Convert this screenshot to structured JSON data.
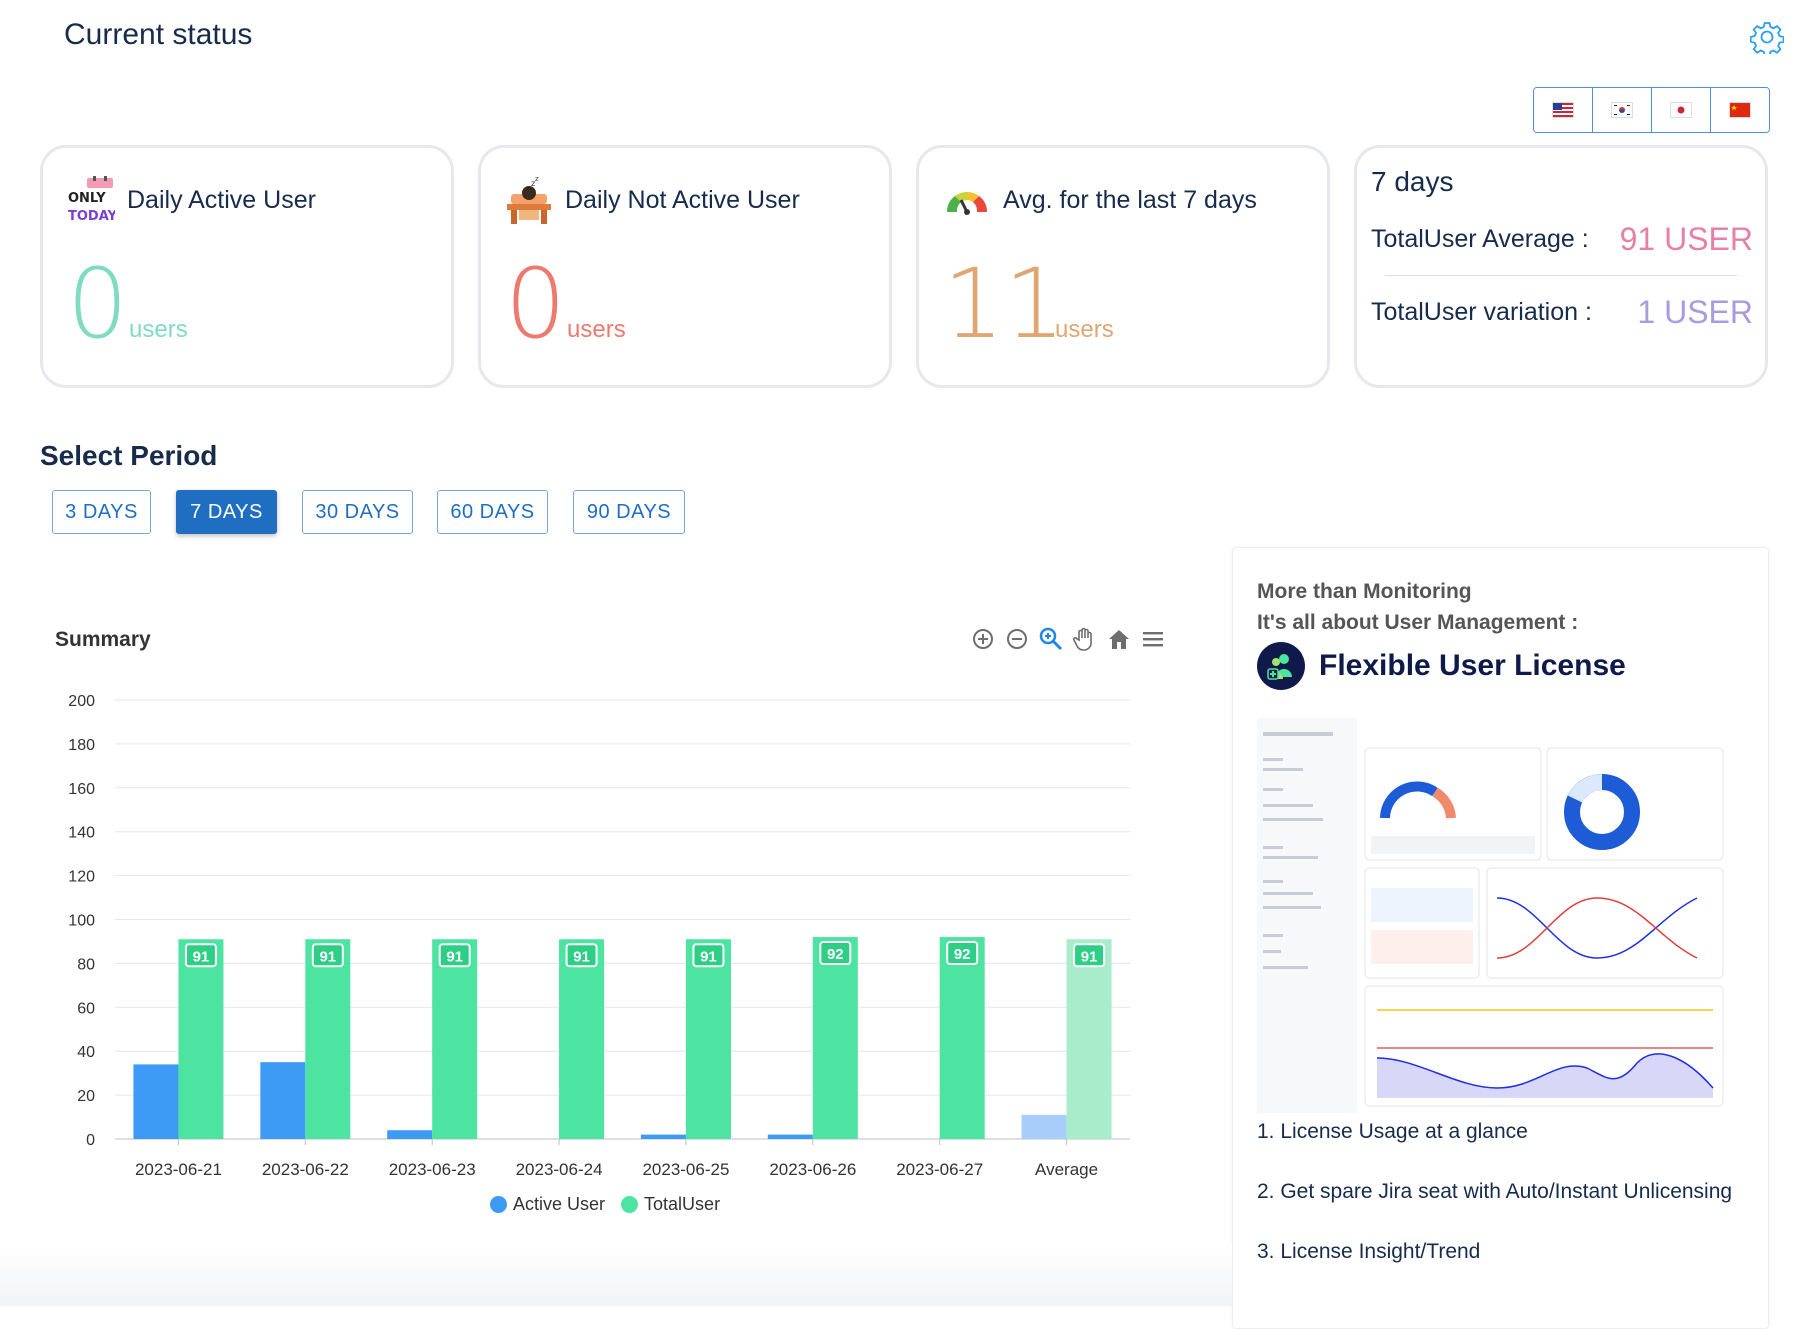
{
  "page": {
    "title": "Current status"
  },
  "languages": [
    {
      "code": "en",
      "flag": "us-flag"
    },
    {
      "code": "ko",
      "flag": "kr-flag"
    },
    {
      "code": "ja",
      "flag": "jp-flag"
    },
    {
      "code": "zh",
      "flag": "cn-flag"
    }
  ],
  "cards": {
    "daily_active": {
      "title": "Daily Active User",
      "value": "0",
      "unit": "users",
      "color": "#7fdcc2",
      "icon": "only-today-icon",
      "icon_text_top": "ONLY",
      "icon_text_bottom": "TODAY"
    },
    "daily_not_active": {
      "title": "Daily Not Active User",
      "value": "0",
      "unit": "users",
      "color": "#ec7a6f",
      "icon": "sleeping-desk-icon"
    },
    "avg_7": {
      "title": "Avg. for the last 7 days",
      "value": "11",
      "unit": "users",
      "color": "#e0a774",
      "icon": "speedometer-icon"
    },
    "stats": {
      "title": "7 days",
      "avg_label": "TotalUser Average :",
      "avg_value": "91 USER",
      "avg_color": "#e77fa9",
      "var_label": "TotalUser variation :",
      "var_value": "1 USER",
      "var_color": "#a99be0"
    }
  },
  "period": {
    "title": "Select Period",
    "options": [
      "3 DAYS",
      "7 DAYS",
      "30 DAYS",
      "60 DAYS",
      "90 DAYS"
    ],
    "selected": "7 DAYS"
  },
  "summary": {
    "title": "Summary",
    "tools": [
      "zoom-in-icon",
      "zoom-out-icon",
      "selection-zoom-icon",
      "pan-hand-icon",
      "reset-home-icon",
      "menu-icon"
    ]
  },
  "chart_data": {
    "type": "bar",
    "categories": [
      "2023-06-21",
      "2023-06-22",
      "2023-06-23",
      "2023-06-24",
      "2023-06-25",
      "2023-06-26",
      "2023-06-27",
      "Average"
    ],
    "series": [
      {
        "name": "Active User",
        "values": [
          34,
          35,
          4,
          0,
          2,
          2,
          0,
          11
        ],
        "color": "#3d9bf5",
        "average_color": "#a9cdfa"
      },
      {
        "name": "TotalUser",
        "values": [
          91,
          91,
          91,
          91,
          91,
          92,
          92,
          91
        ],
        "color": "#4de3a0",
        "average_color": "#a9eccc"
      }
    ],
    "data_labels": [
      "91",
      "91",
      "91",
      "91",
      "91",
      "92",
      "92",
      "91"
    ],
    "ylim": [
      0,
      200
    ],
    "yticks": [
      "0",
      "20",
      "40",
      "60",
      "80",
      "100",
      "120",
      "140",
      "160",
      "180",
      "200"
    ],
    "grid": true,
    "legend": "bottom-center"
  },
  "promo": {
    "line1": "More than Monitoring",
    "line2": "It's all about User Management :",
    "brand": "Flexible User License",
    "features": [
      "1. License Usage at a glance",
      "2. Get spare Jira seat with Auto/Instant Unlicensing",
      "3. License Insight/Trend"
    ]
  }
}
